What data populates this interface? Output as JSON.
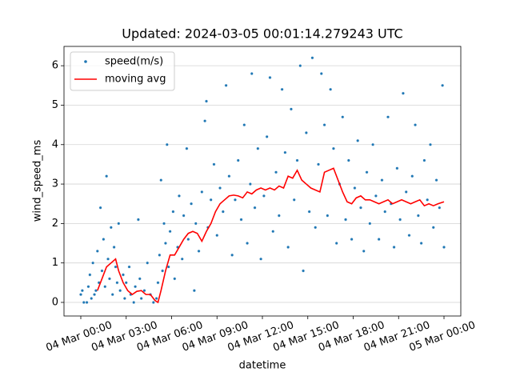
{
  "chart_data": {
    "type": "scatter",
    "title": "Updated: 2024-03-05 00:01:14.279243 UTC",
    "x_label": "datetime",
    "y_label": "wind_speed_ms",
    "xlim": [
      -1.11,
      25.11
    ],
    "ylim": [
      -0.345,
      6.49
    ],
    "xticks": [
      {
        "value": 0,
        "label": "04 Mar 00:00"
      },
      {
        "value": 3,
        "label": "04 Mar 03:00"
      },
      {
        "value": 6,
        "label": "04 Mar 06:00"
      },
      {
        "value": 9,
        "label": "04 Mar 09:00"
      },
      {
        "value": 12,
        "label": "04 Mar 12:00"
      },
      {
        "value": 15,
        "label": "04 Mar 15:00"
      },
      {
        "value": 18,
        "label": "04 Mar 18:00"
      },
      {
        "value": 21,
        "label": "04 Mar 21:00"
      },
      {
        "value": 24,
        "label": "05 Mar 00:00"
      }
    ],
    "yticks": [
      0,
      1,
      2,
      3,
      4,
      5,
      6
    ],
    "grid": true,
    "legend": "upper left",
    "series": [
      {
        "name": "speed(m/s)",
        "type": "scatter",
        "color": "#1f77b4",
        "x": [
          0.0,
          0.1,
          0.2,
          0.4,
          0.5,
          0.6,
          0.7,
          0.8,
          0.9,
          1.0,
          1.1,
          1.2,
          1.3,
          1.4,
          1.5,
          1.6,
          1.7,
          1.8,
          1.9,
          2.0,
          2.1,
          2.2,
          2.3,
          2.4,
          2.5,
          2.6,
          2.8,
          2.9,
          3.0,
          3.2,
          3.3,
          3.5,
          3.6,
          3.8,
          3.9,
          4.0,
          4.2,
          4.4,
          4.6,
          4.8,
          5.0,
          5.1,
          5.2,
          5.3,
          5.4,
          5.5,
          5.6,
          5.7,
          5.8,
          5.9,
          6.1,
          6.2,
          6.4,
          6.5,
          6.7,
          6.8,
          7.0,
          7.1,
          7.3,
          7.5,
          7.6,
          7.8,
          8.0,
          8.2,
          8.3,
          8.4,
          8.6,
          8.8,
          9.0,
          9.2,
          9.4,
          9.6,
          9.8,
          10.0,
          10.2,
          10.4,
          10.6,
          10.8,
          11.0,
          11.2,
          11.3,
          11.5,
          11.7,
          11.9,
          12.1,
          12.3,
          12.5,
          12.7,
          12.9,
          13.1,
          13.3,
          13.5,
          13.7,
          13.9,
          14.1,
          14.3,
          14.5,
          14.7,
          14.9,
          15.1,
          15.3,
          15.5,
          15.7,
          15.9,
          16.1,
          16.3,
          16.5,
          16.7,
          16.9,
          17.1,
          17.3,
          17.5,
          17.7,
          17.9,
          18.1,
          18.3,
          18.5,
          18.7,
          18.9,
          19.1,
          19.3,
          19.5,
          19.7,
          19.9,
          20.1,
          20.3,
          20.5,
          20.7,
          20.9,
          21.1,
          21.3,
          21.5,
          21.7,
          21.9,
          22.1,
          22.3,
          22.5,
          22.7,
          22.9,
          23.1,
          23.3,
          23.5,
          23.7,
          23.9,
          24.0
        ],
        "values": [
          0.2,
          0.3,
          0,
          0,
          0.4,
          0.7,
          0.1,
          1.0,
          0.2,
          0.3,
          1.3,
          0.5,
          2.4,
          0.8,
          1.6,
          0.4,
          3.2,
          1.1,
          0.6,
          1.9,
          0.2,
          1.4,
          0.9,
          0.5,
          2.0,
          0.3,
          0.7,
          0.1,
          0.5,
          0.9,
          0.2,
          0,
          0.4,
          2.1,
          0.6,
          0.1,
          0.3,
          1.0,
          0.2,
          0,
          0.1,
          0.5,
          1.2,
          3.1,
          0.8,
          2.0,
          1.5,
          4.0,
          0.9,
          1.8,
          2.3,
          0.6,
          1.4,
          2.7,
          1.1,
          2.2,
          3.9,
          1.6,
          2.5,
          0.3,
          2.0,
          1.3,
          2.8,
          4.6,
          5.1,
          1.9,
          2.6,
          3.5,
          1.7,
          2.9,
          2.3,
          5.5,
          3.2,
          1.2,
          2.6,
          3.6,
          2.1,
          4.5,
          1.5,
          3.0,
          5.8,
          2.4,
          3.9,
          1.1,
          2.7,
          4.2,
          5.7,
          1.8,
          3.3,
          2.2,
          5.4,
          3.8,
          1.4,
          4.9,
          2.6,
          3.6,
          6.0,
          0.8,
          4.3,
          2.3,
          6.2,
          1.9,
          3.5,
          5.8,
          4.5,
          2.2,
          5.4,
          3.9,
          1.5,
          3.0,
          4.7,
          2.1,
          3.6,
          1.6,
          2.9,
          4.1,
          2.4,
          1.3,
          3.3,
          2.0,
          4.0,
          2.7,
          1.6,
          3.1,
          2.3,
          4.7,
          2.5,
          1.4,
          3.4,
          2.1,
          5.3,
          2.8,
          1.7,
          3.2,
          4.5,
          2.2,
          1.5,
          3.6,
          2.6,
          4.0,
          1.9,
          3.1,
          2.4,
          5.5,
          1.4
        ]
      },
      {
        "name": "moving avg",
        "type": "line",
        "color": "#ff0000",
        "x": [
          1.1,
          1.4,
          1.7,
          2.0,
          2.3,
          2.5,
          2.8,
          3.1,
          3.4,
          3.7,
          4.0,
          4.3,
          4.6,
          4.9,
          5.1,
          5.3,
          5.6,
          5.9,
          6.2,
          6.5,
          6.8,
          7.1,
          7.4,
          7.7,
          8.0,
          8.3,
          8.6,
          8.9,
          9.2,
          9.5,
          9.8,
          10.1,
          10.4,
          10.7,
          11.0,
          11.3,
          11.6,
          11.9,
          12.2,
          12.5,
          12.8,
          13.1,
          13.4,
          13.7,
          14.0,
          14.3,
          14.6,
          14.9,
          15.2,
          15.5,
          15.8,
          16.1,
          16.4,
          16.7,
          17.0,
          17.3,
          17.6,
          17.9,
          18.2,
          18.5,
          18.8,
          19.1,
          19.4,
          19.7,
          20.0,
          20.3,
          20.6,
          20.9,
          21.2,
          21.5,
          21.8,
          22.1,
          22.4,
          22.7,
          23.0,
          23.3,
          23.6,
          24.0
        ],
        "values": [
          0.3,
          0.6,
          0.9,
          1.0,
          1.1,
          0.8,
          0.5,
          0.3,
          0.2,
          0.28,
          0.3,
          0.2,
          0.2,
          0.05,
          0.0,
          0.3,
          0.8,
          1.2,
          1.2,
          1.4,
          1.6,
          1.75,
          1.8,
          1.75,
          1.55,
          1.8,
          2.0,
          2.3,
          2.5,
          2.6,
          2.7,
          2.72,
          2.7,
          2.65,
          2.8,
          2.75,
          2.85,
          2.9,
          2.85,
          2.9,
          2.85,
          2.95,
          2.9,
          3.2,
          3.15,
          3.35,
          3.1,
          3.0,
          2.9,
          2.85,
          2.8,
          3.3,
          3.35,
          3.4,
          3.1,
          2.8,
          2.55,
          2.5,
          2.65,
          2.7,
          2.6,
          2.6,
          2.55,
          2.5,
          2.55,
          2.6,
          2.5,
          2.55,
          2.6,
          2.55,
          2.5,
          2.55,
          2.6,
          2.45,
          2.5,
          2.45,
          2.5,
          2.55
        ]
      }
    ]
  }
}
